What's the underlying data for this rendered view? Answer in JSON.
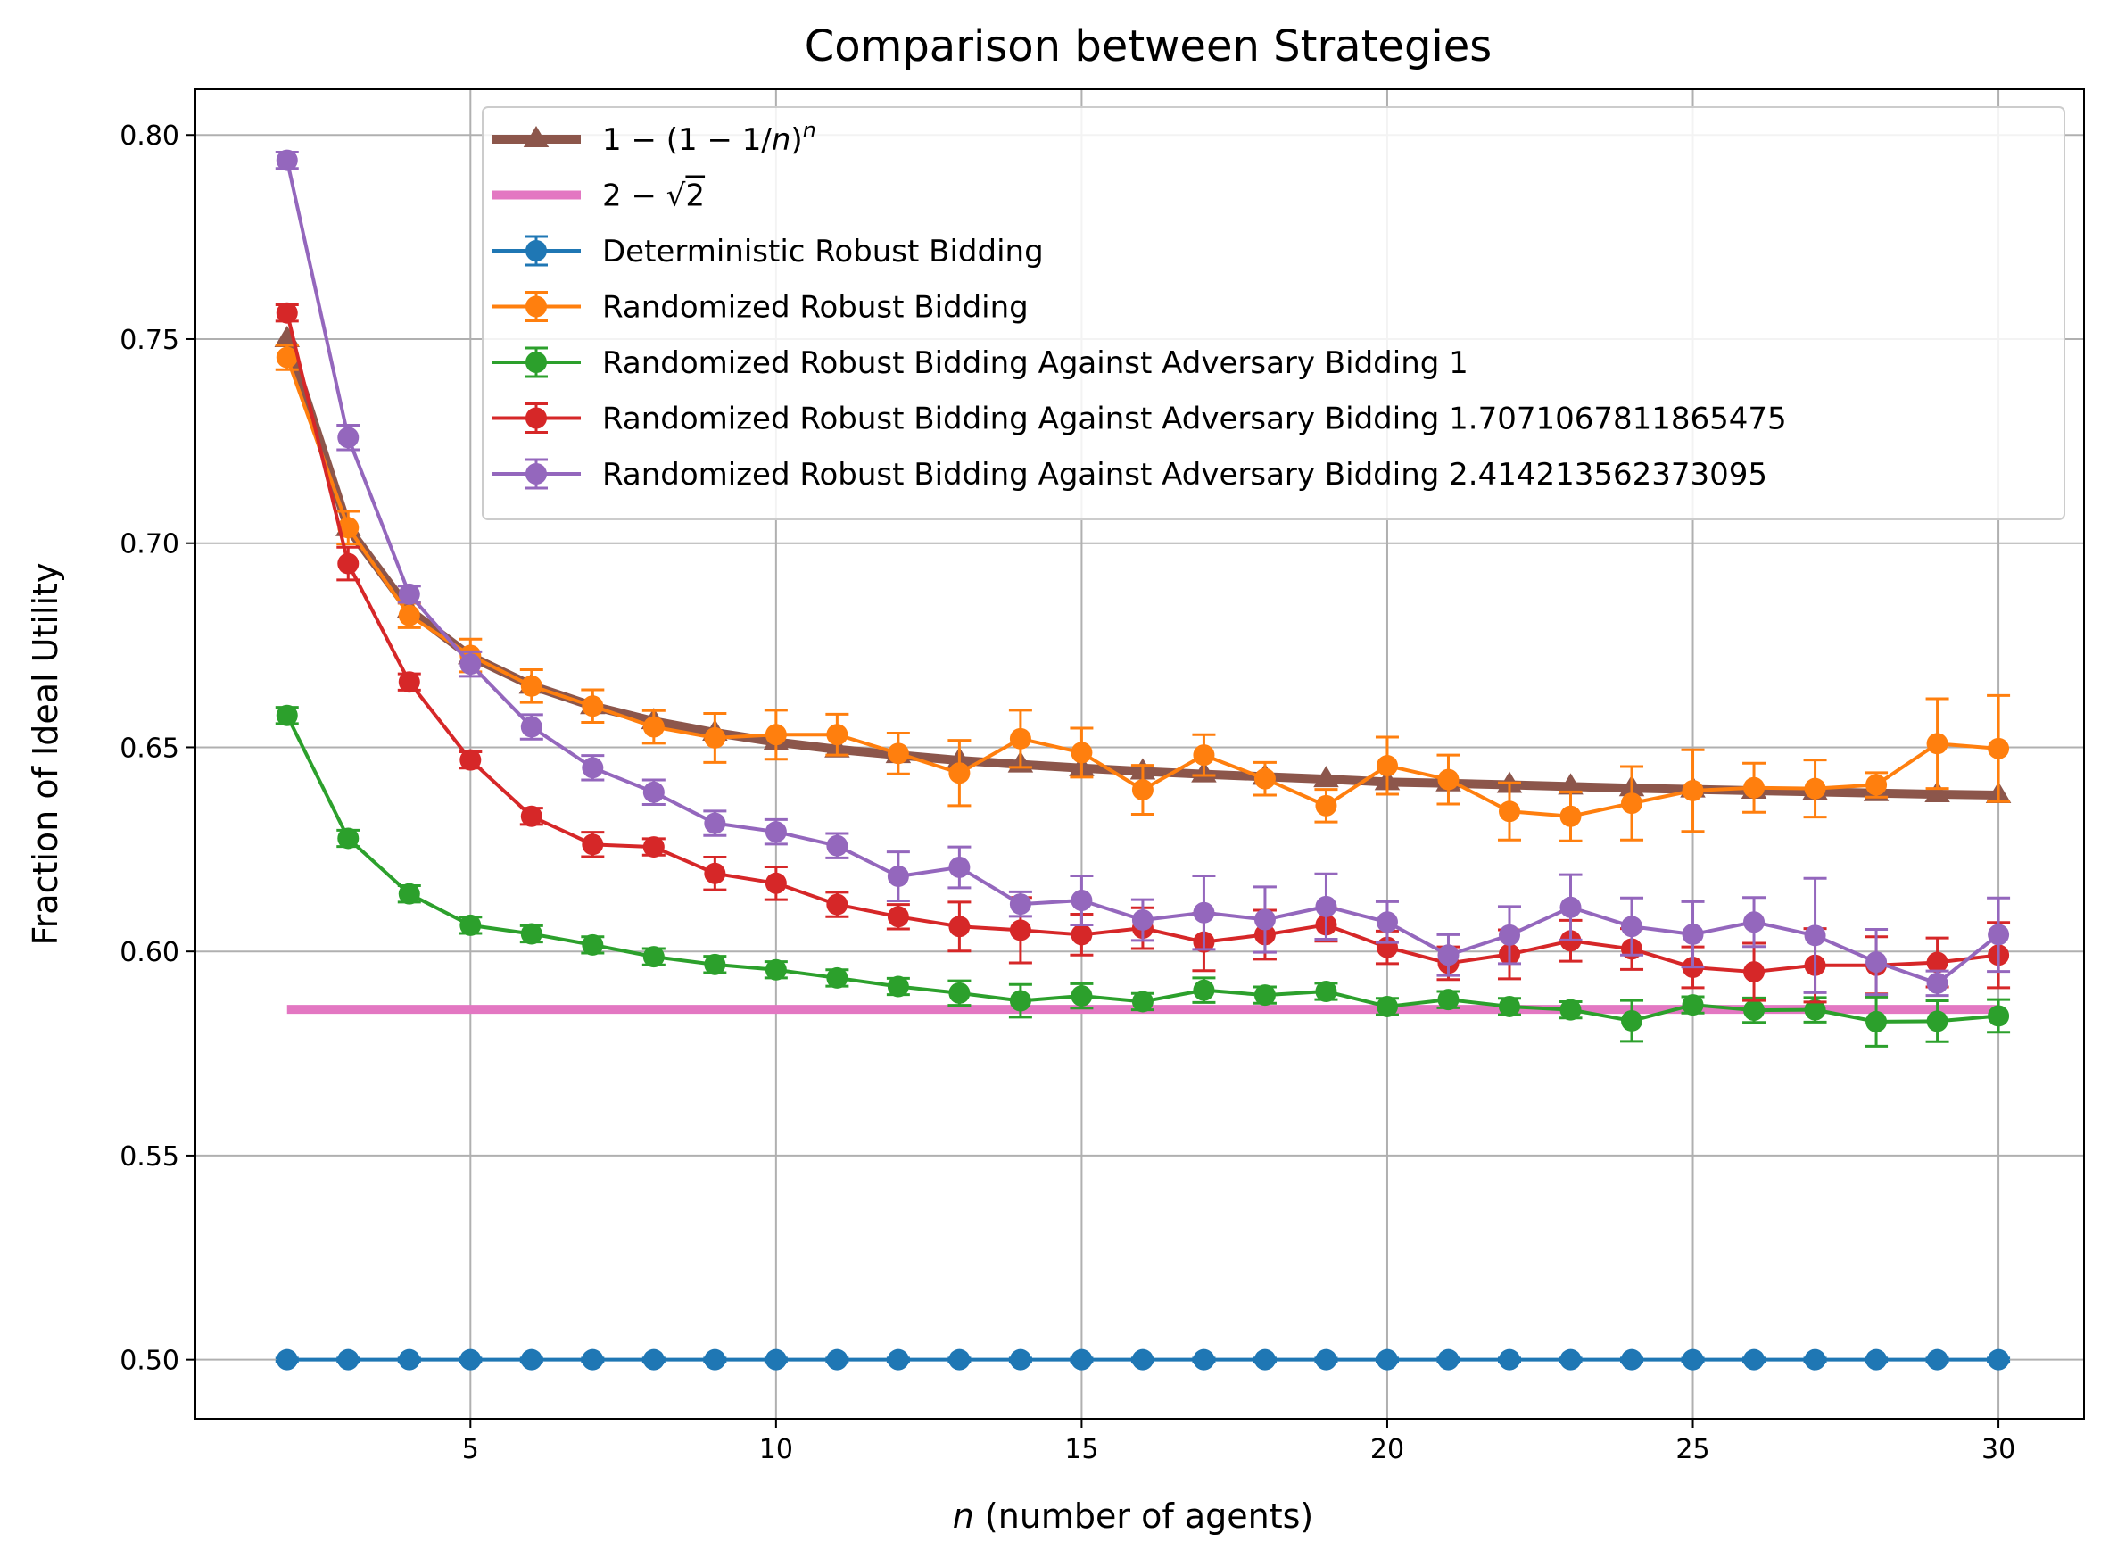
{
  "chart_data": {
    "type": "line",
    "title": "Comparison between Strategies",
    "xlabel_var": "n",
    "xlabel_rest": " (number of agents)",
    "ylabel": "Fraction of Ideal Utility",
    "xlim": [
      0.5,
      31.4
    ],
    "ylim": [
      0.4855,
      0.8112
    ],
    "xticks": [
      5,
      10,
      15,
      20,
      25,
      30
    ],
    "yticks": [
      0.5,
      0.55,
      0.6,
      0.65,
      0.7,
      0.75,
      0.8
    ],
    "ytick_labels": [
      "0.50",
      "0.55",
      "0.60",
      "0.65",
      "0.70",
      "0.75",
      "0.80"
    ],
    "grid": true,
    "legend_position": "upper-right",
    "x": [
      2,
      3,
      4,
      5,
      6,
      7,
      8,
      9,
      10,
      11,
      12,
      13,
      14,
      15,
      16,
      17,
      18,
      19,
      20,
      21,
      22,
      23,
      24,
      25,
      26,
      27,
      28,
      29,
      30
    ],
    "series": [
      {
        "name": "1 − (1 − 1/n)ⁿ",
        "name_parts": {
          "lead": "1 − (1 − 1/",
          "var": "n",
          "close": ")",
          "sup": "n"
        },
        "color": "#8c564b",
        "marker": "triangle",
        "line_width": "thick",
        "values": [
          0.75,
          0.7037,
          0.6836,
          0.6723,
          0.6651,
          0.6601,
          0.6564,
          0.6536,
          0.6513,
          0.6495,
          0.6481,
          0.6468,
          0.6458,
          0.6449,
          0.6441,
          0.6434,
          0.6428,
          0.6422,
          0.6415,
          0.6412,
          0.6408,
          0.6404,
          0.64,
          0.6397,
          0.6394,
          0.6391,
          0.6388,
          0.6385,
          0.6383
        ]
      },
      {
        "name": "2 − √2",
        "name_parts": {
          "lead": "2 − ",
          "radical": "√",
          "radicand": "2"
        },
        "color": "#e377c2",
        "marker": "none",
        "line_width": "thick",
        "values": [
          0.5858,
          0.5858,
          0.5858,
          0.5858,
          0.5858,
          0.5858,
          0.5858,
          0.5858,
          0.5858,
          0.5858,
          0.5858,
          0.5858,
          0.5858,
          0.5858,
          0.5858,
          0.5858,
          0.5858,
          0.5858,
          0.5858,
          0.5858,
          0.5858,
          0.5858,
          0.5858,
          0.5858,
          0.5858,
          0.5858,
          0.5858,
          0.5858,
          0.5858
        ]
      },
      {
        "name": "Deterministic Robust Bidding",
        "color": "#1f77b4",
        "marker": "circle",
        "values": [
          0.5,
          0.5,
          0.5,
          0.5,
          0.5,
          0.5,
          0.5,
          0.5,
          0.5,
          0.5,
          0.5,
          0.5,
          0.5,
          0.5,
          0.5,
          0.5,
          0.5,
          0.5,
          0.5,
          0.5,
          0.5,
          0.5,
          0.5,
          0.5,
          0.5,
          0.5,
          0.5,
          0.5,
          0.5
        ],
        "errors": [
          0.0004,
          0.0004,
          0.0004,
          0.0004,
          0.0004,
          0.0004,
          0.0004,
          0.0004,
          0.0004,
          0.0004,
          0.0004,
          0.0004,
          0.0004,
          0.0004,
          0.0004,
          0.0004,
          0.0004,
          0.0004,
          0.0004,
          0.0004,
          0.0004,
          0.0004,
          0.0004,
          0.0004,
          0.0004,
          0.0004,
          0.0004,
          0.0004,
          0.0004
        ]
      },
      {
        "name": "Randomized Robust Bidding",
        "color": "#ff7f0e",
        "marker": "circle",
        "values": [
          0.7455,
          0.7038,
          0.6823,
          0.6725,
          0.665,
          0.6601,
          0.655,
          0.6523,
          0.6531,
          0.6531,
          0.6485,
          0.6437,
          0.6521,
          0.6487,
          0.6396,
          0.6481,
          0.6423,
          0.6357,
          0.6455,
          0.6421,
          0.6343,
          0.6331,
          0.6363,
          0.6394,
          0.6401,
          0.6399,
          0.6408,
          0.6509,
          0.6497
        ],
        "errors": [
          0.003,
          0.004,
          0.003,
          0.004,
          0.004,
          0.004,
          0.004,
          0.006,
          0.006,
          0.005,
          0.005,
          0.008,
          0.007,
          0.006,
          0.006,
          0.005,
          0.004,
          0.004,
          0.007,
          0.006,
          0.007,
          0.006,
          0.009,
          0.01,
          0.006,
          0.007,
          0.003,
          0.011,
          0.013
        ]
      },
      {
        "name": "Randomized Robust Bidding Against Adversary Bidding 1",
        "color": "#2ca02c",
        "marker": "circle",
        "values": [
          0.6578,
          0.6277,
          0.6141,
          0.6064,
          0.6043,
          0.6016,
          0.5987,
          0.5968,
          0.5955,
          0.5935,
          0.5914,
          0.5898,
          0.5879,
          0.5891,
          0.5877,
          0.5905,
          0.5893,
          0.5902,
          0.5865,
          0.5882,
          0.5865,
          0.5857,
          0.583,
          0.5869,
          0.5856,
          0.5857,
          0.5828,
          0.5829,
          0.5842
        ],
        "errors": [
          0.002,
          0.002,
          0.002,
          0.002,
          0.002,
          0.002,
          0.002,
          0.002,
          0.002,
          0.002,
          0.002,
          0.003,
          0.004,
          0.003,
          0.002,
          0.003,
          0.002,
          0.002,
          0.002,
          0.002,
          0.002,
          0.002,
          0.005,
          0.002,
          0.003,
          0.003,
          0.006,
          0.005,
          0.004
        ]
      },
      {
        "name": "Randomized Robust Bidding Against Adversary Bidding 1.7071067811865475",
        "color": "#d62728",
        "marker": "circle",
        "values": [
          0.7564,
          0.695,
          0.666,
          0.6469,
          0.6331,
          0.6262,
          0.6256,
          0.6191,
          0.6167,
          0.6115,
          0.6085,
          0.6061,
          0.6052,
          0.6041,
          0.6057,
          0.6023,
          0.6041,
          0.6065,
          0.601,
          0.5971,
          0.5993,
          0.6026,
          0.6006,
          0.5961,
          0.595,
          0.5966,
          0.5966,
          0.5973,
          0.5991
        ],
        "errors": [
          0.002,
          0.004,
          0.002,
          0.002,
          0.002,
          0.003,
          0.002,
          0.004,
          0.004,
          0.003,
          0.003,
          0.006,
          0.008,
          0.005,
          0.005,
          0.007,
          0.006,
          0.004,
          0.004,
          0.004,
          0.006,
          0.005,
          0.005,
          0.005,
          0.007,
          0.009,
          0.007,
          0.006,
          0.008
        ]
      },
      {
        "name": "Randomized Robust Bidding Against Adversary Bidding 2.414213562373095",
        "color": "#9467bd",
        "marker": "circle",
        "values": [
          0.7938,
          0.7259,
          0.6875,
          0.6704,
          0.655,
          0.645,
          0.639,
          0.6314,
          0.6293,
          0.6259,
          0.6184,
          0.6206,
          0.6116,
          0.6125,
          0.6077,
          0.6095,
          0.6078,
          0.611,
          0.6072,
          0.5991,
          0.604,
          0.6108,
          0.6061,
          0.6042,
          0.6072,
          0.6039,
          0.5974,
          0.5922,
          0.6041
        ],
        "errors": [
          0.002,
          0.003,
          0.002,
          0.003,
          0.003,
          0.003,
          0.003,
          0.003,
          0.003,
          0.003,
          0.006,
          0.005,
          0.003,
          0.006,
          0.005,
          0.009,
          0.008,
          0.008,
          0.005,
          0.005,
          0.007,
          0.008,
          0.007,
          0.008,
          0.006,
          0.014,
          0.008,
          0.003,
          0.009
        ]
      }
    ]
  }
}
